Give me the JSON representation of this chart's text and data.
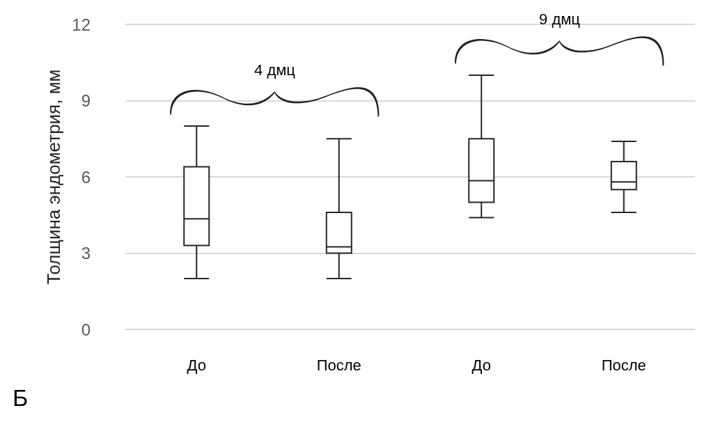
{
  "chart_data": {
    "type": "box",
    "ylabel": "Толщина эндометрия, мм",
    "categories": [
      "До",
      "После",
      "До",
      "После"
    ],
    "boxes": [
      {
        "low": 2.0,
        "q1": 3.3,
        "median": 4.35,
        "q3": 6.4,
        "high": 8.0
      },
      {
        "low": 2.0,
        "q1": 3.0,
        "median": 3.25,
        "q3": 4.6,
        "high": 7.5
      },
      {
        "low": 4.4,
        "q1": 5.0,
        "median": 5.85,
        "q3": 7.5,
        "high": 10.0
      },
      {
        "low": 4.6,
        "q1": 5.5,
        "median": 5.8,
        "q3": 6.6,
        "high": 7.4
      }
    ],
    "color": "#262626",
    "ylim": [
      0,
      12
    ],
    "yticks": [
      0,
      3,
      6,
      9,
      12
    ],
    "grid": "y",
    "annotations": [
      "4 дмц",
      "9 дмц",
      "Б"
    ]
  }
}
